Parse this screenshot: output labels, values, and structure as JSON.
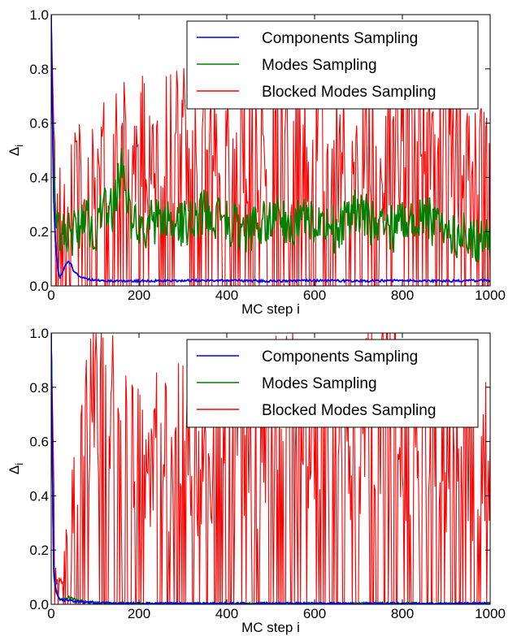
{
  "chart_data": [
    {
      "type": "line",
      "xlabel": "MC step i",
      "ylabel": "Δ",
      "ylabel_sub": "i",
      "xlim": [
        0,
        1000
      ],
      "ylim": [
        0.0,
        1.0
      ],
      "xticks": [
        0,
        200,
        400,
        600,
        800,
        1000
      ],
      "yticks": [
        0.0,
        0.2,
        0.4,
        0.6,
        0.8,
        1.0
      ],
      "xtick_labels": [
        "0",
        "200",
        "400",
        "600",
        "800",
        "1000"
      ],
      "ytick_labels": [
        "0.0",
        "0.2",
        "0.4",
        "0.6",
        "0.8",
        "1.0"
      ],
      "grid": false,
      "legend_position": "top-right",
      "series": [
        {
          "name": "Components Sampling",
          "color": "#0000ff",
          "x": [
            0,
            5,
            10,
            15,
            20,
            25,
            30,
            35,
            40,
            45,
            50,
            60,
            70,
            80,
            100,
            150,
            200,
            300,
            400,
            500,
            600,
            700,
            800,
            900,
            1000
          ],
          "y": [
            1.0,
            0.35,
            0.15,
            0.06,
            0.03,
            0.05,
            0.07,
            0.08,
            0.09,
            0.08,
            0.06,
            0.04,
            0.03,
            0.025,
            0.02,
            0.018,
            0.018,
            0.02,
            0.02,
            0.018,
            0.02,
            0.018,
            0.02,
            0.018,
            0.02
          ]
        },
        {
          "name": "Modes Sampling",
          "color": "#008000",
          "x": [
            0,
            10,
            20,
            40,
            60,
            80,
            100,
            120,
            140,
            160,
            180,
            200,
            250,
            300,
            350,
            400,
            450,
            500,
            550,
            600,
            650,
            700,
            750,
            800,
            850,
            900,
            950,
            1000
          ],
          "y": [
            0.8,
            0.25,
            0.22,
            0.18,
            0.22,
            0.25,
            0.2,
            0.3,
            0.28,
            0.42,
            0.25,
            0.2,
            0.25,
            0.22,
            0.28,
            0.24,
            0.2,
            0.26,
            0.22,
            0.25,
            0.2,
            0.28,
            0.2,
            0.22,
            0.25,
            0.2,
            0.18,
            0.17
          ]
        },
        {
          "name": "Blocked Modes Sampling",
          "color": "#ff0000",
          "x": [
            0,
            10,
            50,
            100,
            150,
            200,
            300,
            400,
            500,
            600,
            700,
            800,
            900,
            1000
          ],
          "y": [
            1.0,
            0.3,
            0.45,
            0.55,
            0.6,
            0.58,
            0.6,
            0.62,
            0.6,
            0.62,
            0.6,
            0.65,
            0.62,
            0.6
          ]
        }
      ]
    },
    {
      "type": "line",
      "xlabel": "MC step i",
      "ylabel": "Δ",
      "ylabel_sub": "i",
      "xlim": [
        0,
        1000
      ],
      "ylim": [
        0.0,
        1.0
      ],
      "xticks": [
        0,
        200,
        400,
        600,
        800,
        1000
      ],
      "yticks": [
        0.0,
        0.2,
        0.4,
        0.6,
        0.8,
        1.0
      ],
      "xtick_labels": [
        "0",
        "200",
        "400",
        "600",
        "800",
        "1000"
      ],
      "ytick_labels": [
        "0.0",
        "0.2",
        "0.4",
        "0.6",
        "0.8",
        "1.0"
      ],
      "grid": false,
      "legend_position": "top-right",
      "series": [
        {
          "name": "Components Sampling",
          "color": "#0000ff",
          "x": [
            0,
            5,
            10,
            15,
            20,
            30,
            40,
            50,
            60,
            80,
            100,
            150,
            200,
            400,
            600,
            800,
            1000
          ],
          "y": [
            1.0,
            0.15,
            0.06,
            0.03,
            0.02,
            0.015,
            0.015,
            0.012,
            0.01,
            0.008,
            0.006,
            0.004,
            0.003,
            0.003,
            0.003,
            0.003,
            0.003
          ]
        },
        {
          "name": "Modes Sampling",
          "color": "#008000",
          "x": [
            0,
            5,
            10,
            15,
            20,
            30,
            40,
            50,
            60,
            80,
            100,
            150,
            200,
            400,
            600,
            800,
            1000
          ],
          "y": [
            1.0,
            0.12,
            0.05,
            0.03,
            0.02,
            0.02,
            0.025,
            0.02,
            0.015,
            0.01,
            0.006,
            0.004,
            0.003,
            0.003,
            0.003,
            0.003,
            0.003
          ]
        },
        {
          "name": "Blocked Modes Sampling",
          "color": "#ff0000",
          "x": [
            0,
            10,
            50,
            100,
            200,
            300,
            400,
            500,
            600,
            700,
            780,
            800,
            900,
            1000
          ],
          "y": [
            1.0,
            0.1,
            0.4,
            0.91,
            0.6,
            0.7,
            0.72,
            0.75,
            0.78,
            0.7,
            1.0,
            0.7,
            0.7,
            0.6
          ]
        }
      ]
    }
  ]
}
